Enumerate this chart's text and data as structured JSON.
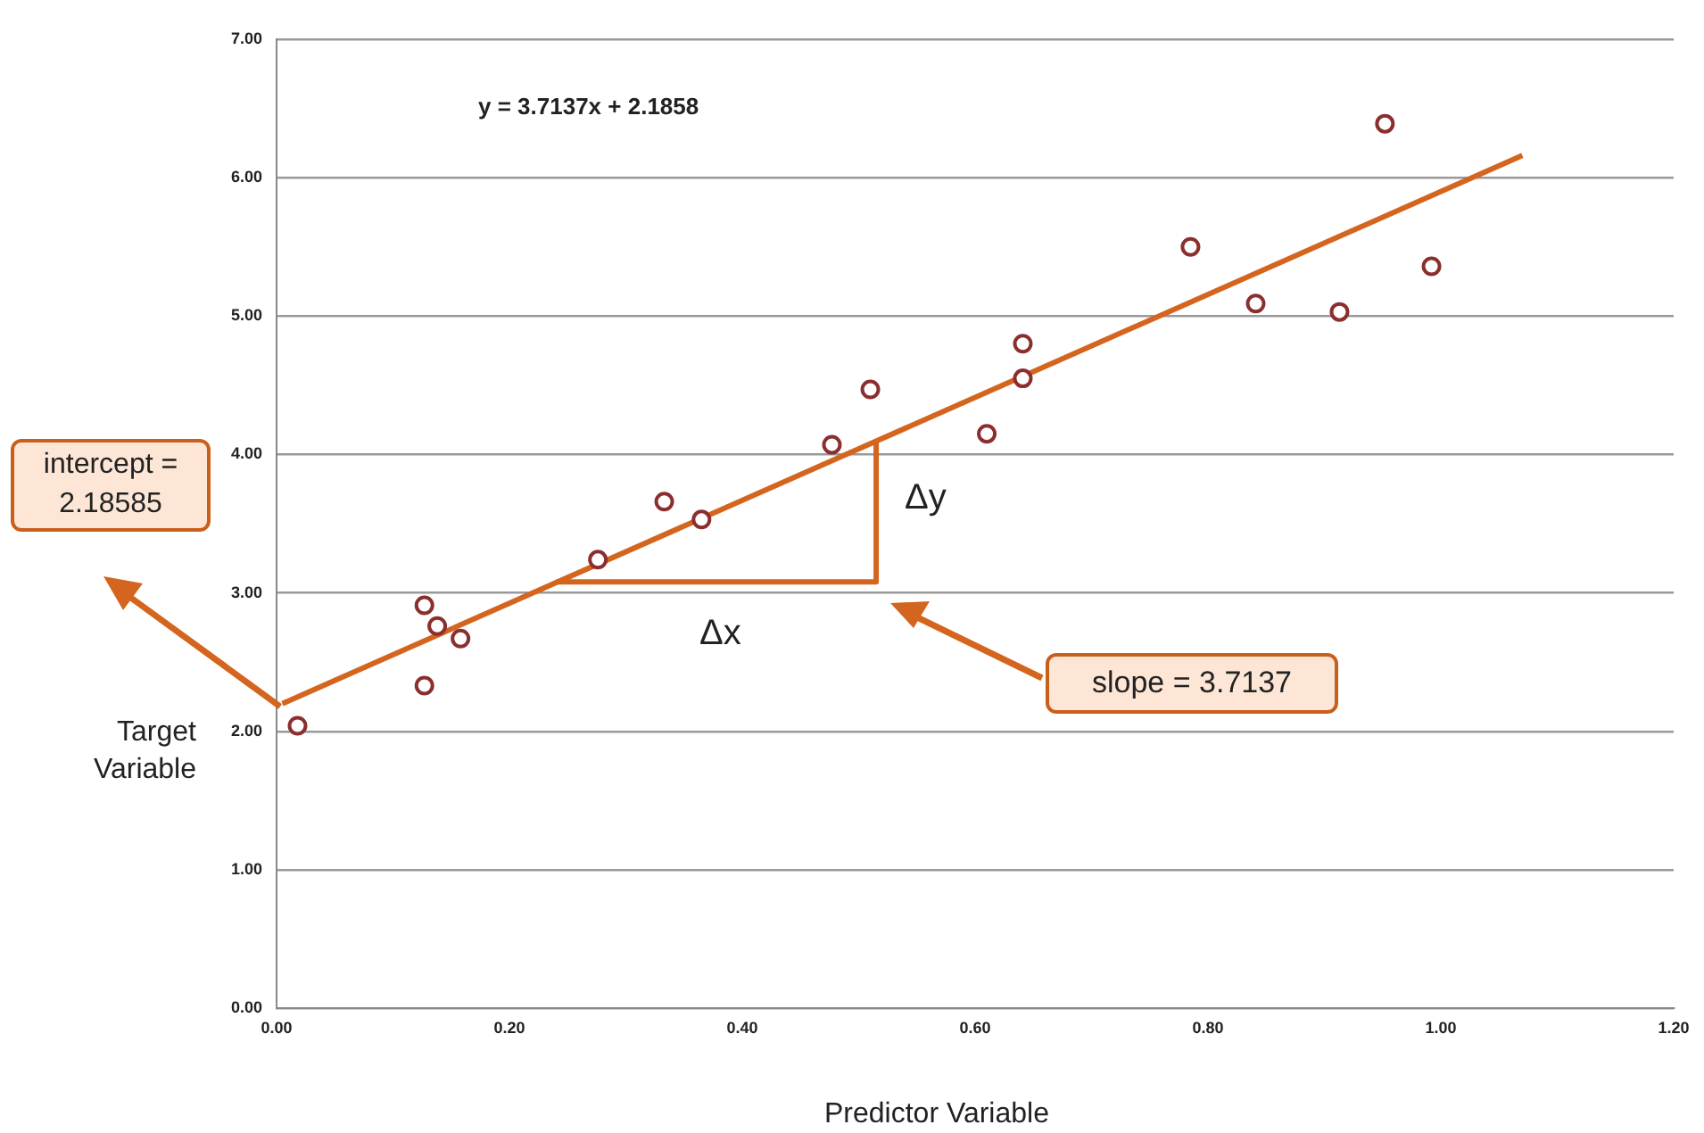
{
  "chart_data": {
    "type": "scatter",
    "xlabel": "Predictor Variable",
    "ylabel": "Target Variable",
    "xlim": [
      0,
      1.2
    ],
    "xticks": [
      {
        "value": 0,
        "label": "0.00"
      },
      {
        "value": 0.2,
        "label": "0.20"
      },
      {
        "value": 0.4,
        "label": "0.40"
      },
      {
        "value": 0.6,
        "label": "0.60"
      },
      {
        "value": 0.8,
        "label": "0.80"
      },
      {
        "value": 1,
        "label": "1.00"
      },
      {
        "value": 1.2,
        "label": "1.20"
      }
    ],
    "ylim": [
      0,
      7
    ],
    "yticks": [
      {
        "value": 0,
        "label": "0.00"
      },
      {
        "value": 1,
        "label": "1.00"
      },
      {
        "value": 2,
        "label": "2.00"
      },
      {
        "value": 3,
        "label": "3.00"
      },
      {
        "value": 4,
        "label": "4.00"
      },
      {
        "value": 5,
        "label": "5.00"
      },
      {
        "value": 6,
        "label": "6.00"
      },
      {
        "value": 7,
        "label": "7.00"
      }
    ],
    "grid": "y",
    "legend": false,
    "marker": "circle",
    "series": [
      {
        "color": "#8b2e2e",
        "x": [
          0.018,
          0.127,
          0.138,
          0.158,
          0.127,
          0.276,
          0.333,
          0.365,
          0.477,
          0.51,
          0.61,
          0.641,
          0.641,
          0.785,
          0.841,
          0.913,
          0.992,
          0.952
        ],
        "values": [
          2.04,
          2.91,
          2.76,
          2.67,
          2.33,
          3.24,
          3.66,
          3.53,
          4.07,
          4.47,
          4.15,
          4.55,
          4.8,
          5.5,
          5.09,
          5.03,
          5.36,
          6.39
        ]
      },
      {
        "type": "line",
        "color": "#d4651e",
        "marker": "none",
        "x": [
          0.005,
          1.07
        ],
        "values": [
          2.2,
          6.16
        ]
      },
      {
        "type": "line",
        "color": "#d4651e",
        "marker": "none",
        "x": [
          0.24,
          0.515,
          0.515
        ],
        "values": [
          3.08,
          3.08,
          4.09
        ]
      }
    ],
    "annotations": [
      "y = 3.7137x + 2.1858",
      "intercept = 2.18585",
      "slope = 3.7137",
      "Δx",
      "Δy"
    ]
  }
}
